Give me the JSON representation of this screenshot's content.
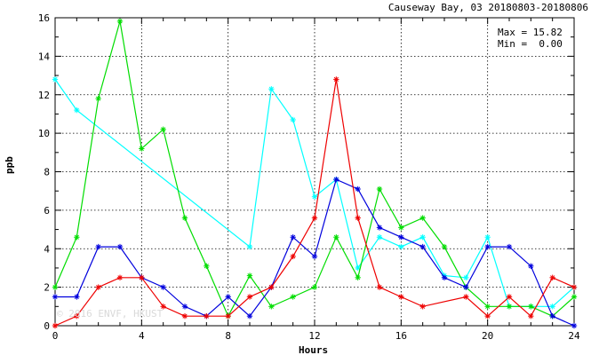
{
  "header": {
    "title": "Causeway Bay, 03 20180803-20180806"
  },
  "stats": {
    "max_label": "Max = 15.82",
    "min_label": "Min =  0.00"
  },
  "watermark": "© 2016 ENVF, HKUST",
  "chart_data": {
    "type": "line",
    "xlabel": "Hours",
    "ylabel": "ppb",
    "xlim": [
      0,
      24
    ],
    "ylim": [
      0,
      16
    ],
    "xticks": [
      0,
      4,
      8,
      12,
      16,
      20,
      24
    ],
    "yticks": [
      0,
      2,
      4,
      6,
      8,
      10,
      12,
      14,
      16
    ],
    "grid": true,
    "series": [
      {
        "color": "#00ffff",
        "x": [
          0,
          1,
          9,
          10,
          11,
          12,
          13,
          14,
          15,
          16,
          17,
          18,
          19,
          20,
          21,
          22,
          23,
          24
        ],
        "y": [
          12.8,
          11.2,
          4.1,
          12.3,
          10.7,
          6.7,
          7.6,
          3.0,
          4.6,
          4.1,
          4.6,
          2.6,
          2.5,
          4.6,
          1.0,
          1.0,
          1.0,
          2.0
        ]
      },
      {
        "color": "#00dd00",
        "x": [
          0,
          1,
          2,
          3,
          4,
          5,
          6,
          7,
          8,
          9,
          10,
          11,
          12,
          13,
          14,
          15,
          16,
          17,
          18,
          19,
          20,
          21,
          22,
          23,
          24
        ],
        "y": [
          2.0,
          4.6,
          11.8,
          15.82,
          9.2,
          10.2,
          5.6,
          3.1,
          0.5,
          2.6,
          1.0,
          1.5,
          2.0,
          4.6,
          2.5,
          7.1,
          5.1,
          5.6,
          4.1,
          2.0,
          1.0,
          1.0,
          1.0,
          0.5,
          1.5
        ]
      },
      {
        "color": "#0000dd",
        "x": [
          0,
          1,
          2,
          3,
          4,
          5,
          6,
          7,
          8,
          9,
          10,
          11,
          12,
          13,
          14,
          15,
          16,
          17,
          18,
          19,
          20,
          21,
          22,
          23,
          24
        ],
        "y": [
          1.5,
          1.5,
          4.1,
          4.1,
          2.5,
          2.0,
          1.0,
          0.5,
          1.5,
          0.5,
          2.0,
          4.6,
          3.6,
          7.6,
          7.1,
          5.1,
          4.6,
          4.1,
          2.5,
          2.0,
          4.1,
          4.1,
          3.1,
          0.5,
          0.0
        ]
      },
      {
        "color": "#ee0000",
        "x": [
          0,
          1,
          2,
          3,
          4,
          5,
          6,
          7,
          8,
          9,
          10,
          11,
          12,
          13,
          14,
          15,
          16,
          17,
          19,
          20,
          21,
          22,
          23,
          24
        ],
        "y": [
          0.0,
          0.5,
          2.0,
          2.5,
          2.5,
          1.0,
          0.5,
          0.5,
          0.5,
          1.5,
          2.0,
          3.6,
          5.6,
          12.8,
          5.6,
          2.0,
          1.5,
          1.0,
          1.5,
          0.5,
          1.5,
          0.5,
          2.5,
          2.0
        ]
      }
    ]
  }
}
